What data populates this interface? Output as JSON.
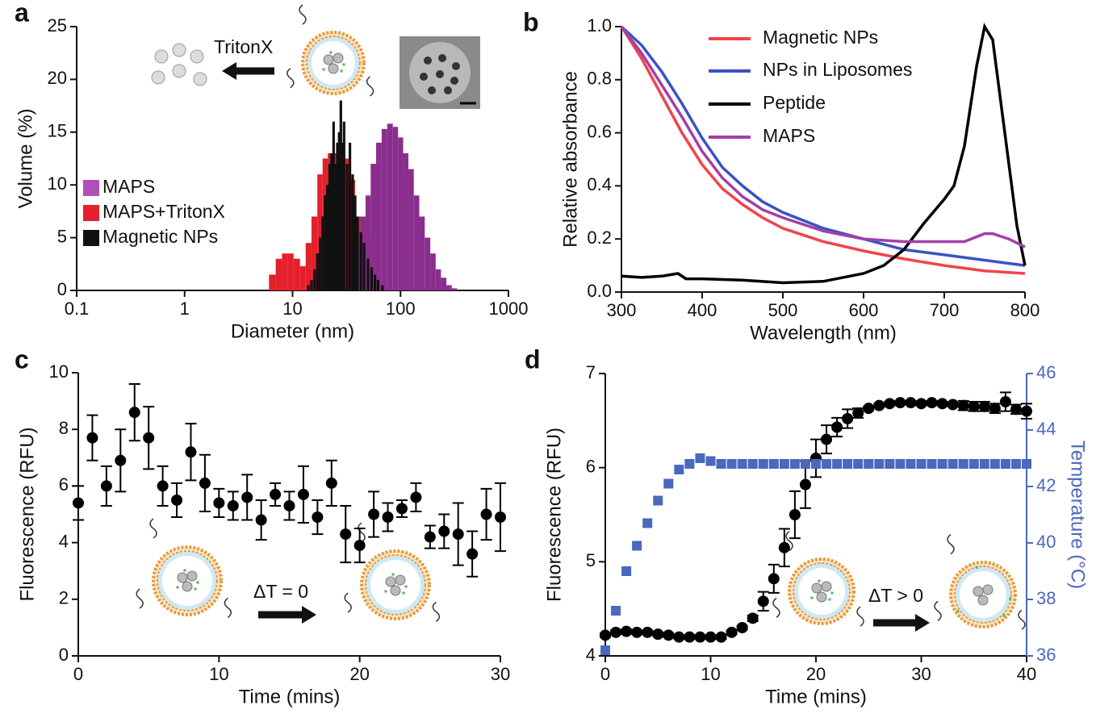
{
  "chart_data": [
    {
      "type": "bar",
      "panel": "a",
      "xlabel": "Diameter (nm)",
      "ylabel": "Volume (%)",
      "xscale": "log",
      "xlim": [
        0.1,
        1000
      ],
      "xticks": [
        0.1,
        1,
        10,
        100,
        1000
      ],
      "ylim": [
        0,
        25
      ],
      "yticks": [
        0,
        5,
        10,
        15,
        20,
        25
      ],
      "annotation": "TritonX",
      "legend": "left",
      "series": [
        {
          "name": "MAPS",
          "color": "#8a2e8e",
          "x": [
            40,
            45,
            50,
            56,
            63,
            71,
            80,
            90,
            100,
            112,
            125,
            141,
            158,
            178,
            200,
            224,
            251,
            282,
            316
          ],
          "values": [
            5,
            7,
            9,
            12,
            14,
            15.3,
            15.8,
            15.5,
            14.5,
            13,
            11.5,
            9,
            7,
            5,
            3.5,
            2,
            1.2,
            0.5,
            0.2
          ]
        },
        {
          "name": "MAPS+TritonX",
          "color": "#e3202b",
          "x": [
            6.5,
            7.5,
            8.5,
            9.5,
            11,
            12.5,
            14,
            16,
            18,
            20,
            22.5,
            25,
            28,
            32,
            36,
            40,
            45,
            50,
            56
          ],
          "values": [
            1.5,
            3,
            3.5,
            3.5,
            3,
            2.3,
            4.5,
            7,
            11,
            12.5,
            13,
            13,
            13,
            12.5,
            10.5,
            7,
            6.5,
            6,
            5
          ]
        },
        {
          "name": "Magnetic NPs",
          "color": "#111111",
          "x": [
            14,
            15,
            16,
            17,
            18,
            19,
            20,
            21,
            22,
            23,
            24,
            25,
            26,
            27,
            28,
            29,
            30,
            32,
            34,
            36,
            38,
            40,
            43,
            46,
            50,
            54,
            58,
            62,
            68
          ],
          "values": [
            0.5,
            1,
            2,
            3.5,
            5,
            7,
            9,
            10,
            12,
            13,
            16,
            12,
            14,
            15,
            18,
            14,
            16,
            12,
            14,
            11,
            9,
            7,
            5.5,
            4.5,
            3,
            2.2,
            1.5,
            1,
            0.5
          ]
        }
      ]
    },
    {
      "type": "line",
      "panel": "b",
      "xlabel": "Wavelength (nm)",
      "ylabel": "Relative  absorbance",
      "xlim": [
        300,
        800
      ],
      "xticks": [
        300,
        400,
        500,
        600,
        700,
        800
      ],
      "ylim": [
        0,
        1
      ],
      "yticks": [
        {
          "value": 0,
          "label": "0.0"
        },
        0.2,
        0.4,
        0.6,
        0.8,
        {
          "value": 1,
          "label": "1.0"
        }
      ],
      "legend": "top-right",
      "series": [
        {
          "name": "Magnetic NPs",
          "color": "#f0444c",
          "x": [
            300,
            325,
            350,
            375,
            400,
            425,
            450,
            475,
            500,
            550,
            600,
            650,
            700,
            750,
            800
          ],
          "values": [
            1.0,
            0.88,
            0.74,
            0.6,
            0.48,
            0.39,
            0.33,
            0.28,
            0.24,
            0.19,
            0.155,
            0.125,
            0.1,
            0.08,
            0.07
          ]
        },
        {
          "name": "NPs in Liposomes",
          "color": "#3a52c4",
          "x": [
            300,
            325,
            350,
            375,
            400,
            425,
            450,
            475,
            500,
            550,
            600,
            650,
            700,
            750,
            800
          ],
          "values": [
            1.0,
            0.93,
            0.83,
            0.71,
            0.58,
            0.47,
            0.4,
            0.34,
            0.3,
            0.24,
            0.2,
            0.16,
            0.14,
            0.12,
            0.1
          ]
        },
        {
          "name": "Peptide",
          "color": "#000000",
          "x": [
            300,
            325,
            350,
            370,
            380,
            400,
            450,
            500,
            550,
            600,
            625,
            650,
            675,
            700,
            712,
            725,
            740,
            750,
            760,
            775,
            790,
            800
          ],
          "values": [
            0.06,
            0.055,
            0.06,
            0.07,
            0.05,
            0.05,
            0.045,
            0.035,
            0.04,
            0.07,
            0.1,
            0.16,
            0.26,
            0.35,
            0.4,
            0.55,
            0.85,
            1.0,
            0.95,
            0.6,
            0.25,
            0.1
          ]
        },
        {
          "name": "MAPS",
          "color": "#a23fa9",
          "x": [
            300,
            325,
            350,
            375,
            400,
            425,
            450,
            475,
            500,
            550,
            600,
            650,
            700,
            725,
            750,
            760,
            780,
            800
          ],
          "values": [
            1.0,
            0.9,
            0.78,
            0.66,
            0.53,
            0.43,
            0.36,
            0.31,
            0.28,
            0.23,
            0.2,
            0.19,
            0.19,
            0.19,
            0.22,
            0.22,
            0.2,
            0.17
          ]
        }
      ]
    },
    {
      "type": "scatter",
      "panel": "c",
      "xlabel": "Time (mins)",
      "ylabel": "Fluorescence (RFU)",
      "xlim": [
        0,
        30
      ],
      "xticks": [
        0,
        10,
        20,
        30
      ],
      "ylim": [
        0,
        10
      ],
      "yticks": [
        0,
        2,
        4,
        6,
        8,
        10
      ],
      "annotation": "ΔT = 0",
      "series": [
        {
          "color": "#000000",
          "marker": "circle",
          "x": [
            0,
            1,
            2,
            3,
            4,
            5,
            6,
            7,
            8,
            9,
            10,
            11,
            12,
            13,
            14,
            15,
            16,
            17,
            18,
            19,
            20,
            21,
            22,
            23,
            24,
            25,
            26,
            27,
            28,
            29,
            30
          ],
          "values": [
            5.4,
            7.7,
            6.0,
            6.9,
            8.6,
            7.7,
            6.0,
            5.5,
            7.2,
            6.1,
            5.4,
            5.3,
            5.6,
            4.8,
            5.7,
            5.3,
            5.7,
            4.9,
            6.1,
            4.3,
            3.9,
            5.0,
            4.9,
            5.2,
            5.6,
            4.2,
            4.4,
            4.3,
            3.6,
            5.0,
            4.9
          ],
          "errors": [
            0.6,
            0.8,
            0.7,
            1.1,
            1.0,
            1.1,
            0.7,
            0.6,
            1.0,
            1.0,
            0.5,
            0.5,
            0.8,
            0.7,
            0.4,
            0.5,
            1.0,
            0.6,
            0.8,
            1.0,
            0.6,
            0.8,
            0.5,
            0.3,
            0.5,
            0.4,
            0.6,
            1.1,
            0.8,
            0.9,
            1.2
          ]
        }
      ]
    },
    {
      "type": "scatter",
      "panel": "d",
      "xlabel": "Time (mins)",
      "ylabel": "Fluorescence (RFU)",
      "y2label": "Temperature  (°C)",
      "xlim": [
        0,
        40
      ],
      "xticks": [
        0,
        10,
        20,
        30,
        40
      ],
      "ylim": [
        4,
        7
      ],
      "yticks": [
        4,
        5,
        6,
        7
      ],
      "y2lim": [
        36,
        46
      ],
      "y2ticks": [
        36,
        38,
        40,
        42,
        44,
        46
      ],
      "y2color": "#4a68bd",
      "annotation": "ΔT > 0",
      "series": [
        {
          "color": "#000000",
          "marker": "circle",
          "x": [
            0,
            1,
            2,
            3,
            4,
            5,
            6,
            7,
            8,
            9,
            10,
            11,
            12,
            13,
            14,
            15,
            16,
            17,
            18,
            19,
            20,
            21,
            22,
            23,
            24,
            25,
            26,
            27,
            28,
            29,
            30,
            31,
            32,
            33,
            34,
            35,
            36,
            37,
            38,
            39,
            40
          ],
          "values": [
            4.22,
            4.25,
            4.26,
            4.25,
            4.25,
            4.23,
            4.22,
            4.2,
            4.2,
            4.2,
            4.2,
            4.2,
            4.25,
            4.3,
            4.4,
            4.58,
            4.82,
            5.15,
            5.5,
            5.82,
            6.1,
            6.3,
            6.43,
            6.52,
            6.58,
            6.63,
            6.66,
            6.68,
            6.69,
            6.69,
            6.68,
            6.69,
            6.68,
            6.67,
            6.66,
            6.65,
            6.65,
            6.63,
            6.7,
            6.62,
            6.6
          ],
          "errors": [
            0.02,
            0.02,
            0.02,
            0.02,
            0.02,
            0.02,
            0.02,
            0.02,
            0.02,
            0.02,
            0.02,
            0.02,
            0.02,
            0.02,
            0.03,
            0.1,
            0.15,
            0.2,
            0.25,
            0.25,
            0.2,
            0.15,
            0.1,
            0.1,
            0.05,
            0.02,
            0.02,
            0.02,
            0.02,
            0.02,
            0.02,
            0.02,
            0.02,
            0.02,
            0.05,
            0.05,
            0.05,
            0.05,
            0.1,
            0.05,
            0.08
          ]
        },
        {
          "color": "#4a68bd",
          "marker": "square",
          "axis": "y2",
          "x": [
            0,
            1,
            2,
            3,
            4,
            5,
            6,
            7,
            8,
            9,
            10,
            11,
            12,
            13,
            14,
            15,
            16,
            17,
            18,
            19,
            20,
            21,
            22,
            23,
            24,
            25,
            26,
            27,
            28,
            29,
            30,
            31,
            32,
            33,
            34,
            35,
            36,
            37,
            38,
            39,
            40
          ],
          "values": [
            36.2,
            37.6,
            39.0,
            39.9,
            40.7,
            41.5,
            42.1,
            42.6,
            42.8,
            43.0,
            42.9,
            42.8,
            42.8,
            42.8,
            42.8,
            42.8,
            42.8,
            42.8,
            42.8,
            42.8,
            42.8,
            42.8,
            42.8,
            42.8,
            42.8,
            42.8,
            42.8,
            42.8,
            42.8,
            42.8,
            42.8,
            42.8,
            42.8,
            42.8,
            42.8,
            42.8,
            42.8,
            42.8,
            42.8,
            42.8,
            42.8
          ]
        }
      ]
    }
  ]
}
